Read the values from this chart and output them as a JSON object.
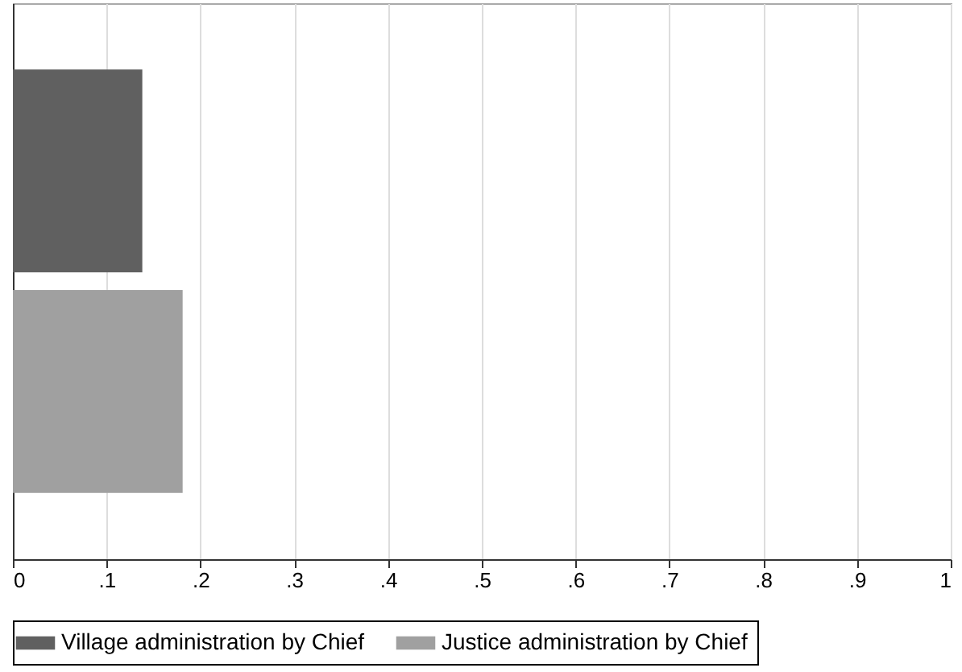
{
  "chart_data": {
    "type": "bar",
    "orientation": "horizontal",
    "categories": [
      null,
      null
    ],
    "series": [
      {
        "name": "Village administration by Chief",
        "color": "#606060",
        "values": [
          0.138,
          null
        ]
      },
      {
        "name": "Justice administration by Chief",
        "color": "#a0a0a0",
        "values": [
          null,
          0.181
        ]
      }
    ],
    "xlim": [
      0,
      1
    ],
    "xticks": [
      0,
      {
        "value": 0.1,
        "label": ".1"
      },
      {
        "value": 0.2,
        "label": ".2"
      },
      {
        "value": 0.3,
        "label": ".3"
      },
      {
        "value": 0.4,
        "label": ".4"
      },
      {
        "value": 0.5,
        "label": ".5"
      },
      {
        "value": 0.6,
        "label": ".6"
      },
      {
        "value": 0.7,
        "label": ".7"
      },
      {
        "value": 0.8,
        "label": ".8"
      },
      {
        "value": 0.9,
        "label": ".9"
      },
      1
    ],
    "grid": "x",
    "legend": "bottom"
  }
}
